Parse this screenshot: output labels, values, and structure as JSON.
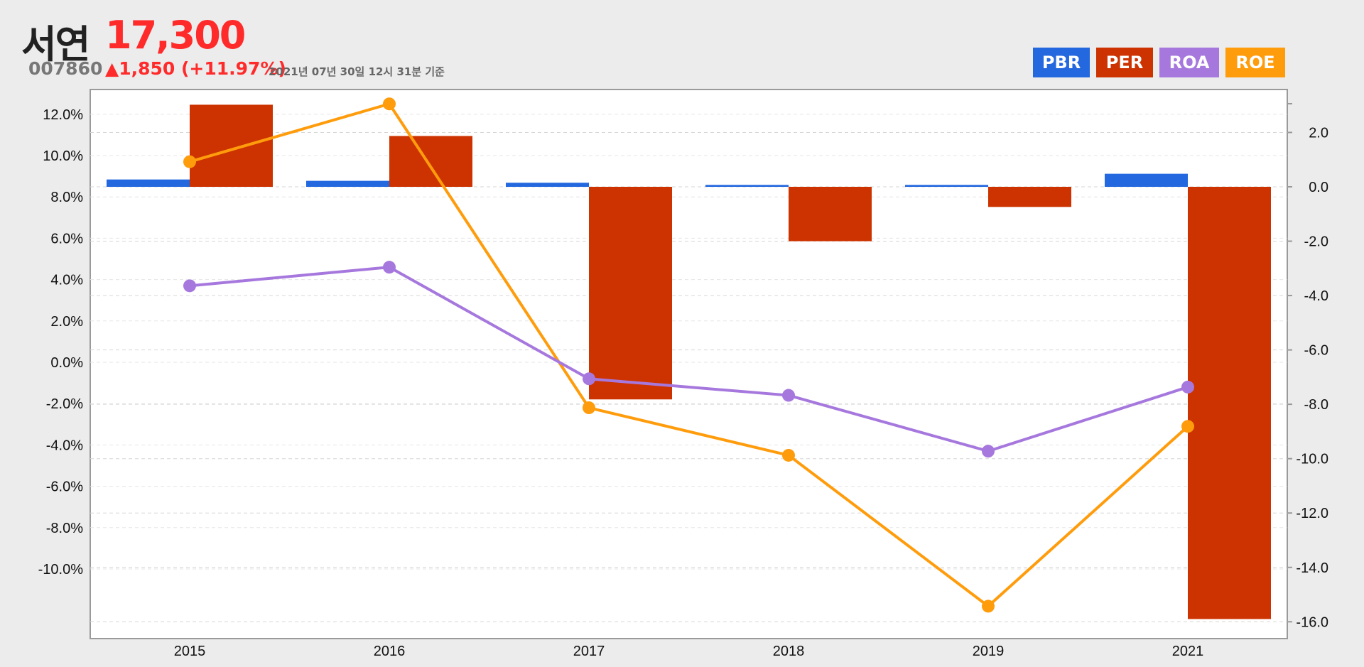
{
  "stock": {
    "name": "서연",
    "price": "17,300",
    "code": "007860",
    "change": "▲1,850 (+11.97%)",
    "as_of": "2021년 07년 30일 12시 31분 기준"
  },
  "colors": {
    "PBR": "#2368df",
    "PER": "#cc3300",
    "ROA": "#a678de",
    "ROE": "#ff9c0c"
  },
  "chart_data": {
    "type": "bar",
    "categories": [
      "2015",
      "2016",
      "2017",
      "2018",
      "2019",
      "2021"
    ],
    "series": [
      {
        "name": "PBR",
        "type": "bar",
        "axis": "right",
        "values": [
          0.27,
          0.22,
          0.15,
          0.07,
          0.07,
          0.48
        ]
      },
      {
        "name": "PER",
        "type": "bar",
        "axis": "right",
        "values": [
          3.02,
          1.87,
          -7.82,
          -2.0,
          -0.74,
          -15.9
        ]
      },
      {
        "name": "ROA",
        "type": "line",
        "axis": "left",
        "values": [
          3.7,
          4.6,
          -0.8,
          -1.6,
          -4.3,
          -1.2
        ]
      },
      {
        "name": "ROE",
        "type": "line",
        "axis": "left",
        "values": [
          9.7,
          12.5,
          -2.2,
          -4.5,
          -11.8,
          -3.1
        ]
      }
    ],
    "legend": [
      "PBR",
      "PER",
      "ROA",
      "ROE"
    ],
    "legend_position": "top-right",
    "left_axis": {
      "ticks": [
        "12.0%",
        "10.0%",
        "8.0%",
        "6.0%",
        "4.0%",
        "2.0%",
        "0.0%",
        "-2.0%",
        "-4.0%",
        "-6.0%",
        "-8.0%",
        "-10.0%"
      ],
      "tick_values": [
        12,
        10,
        8,
        6,
        4,
        2,
        0,
        -2,
        -4,
        -6,
        -8,
        -10
      ]
    },
    "right_axis": {
      "ticks": [
        "2.0",
        "0.0",
        "-2.0",
        "-4.0",
        "-6.0",
        "-8.0",
        "-10.0",
        "-12.0",
        "-14.0",
        "-16.0"
      ],
      "tick_values": [
        2,
        0,
        -2,
        -4,
        -6,
        -8,
        -10,
        -12,
        -14,
        -16
      ]
    },
    "grid": true
  }
}
